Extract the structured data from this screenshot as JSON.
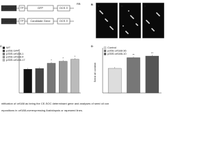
{
  "panels": {
    "a": {
      "rb": "RB",
      "rows": [
        [
          "CaMV35S",
          "TP",
          "GFP",
          "OCS 3'"
        ],
        [
          "CaMV35S",
          "TP",
          "Candidate Gene",
          "OCS 3'"
        ]
      ]
    },
    "b": {
      "label": "B",
      "images": [
        "a",
        "b",
        "c"
      ]
    }
  },
  "chart_data": [
    {
      "type": "bar",
      "label": "C",
      "ylim": [
        0,
        60
      ],
      "series": [
        {
          "name": "WT",
          "color": "#111111",
          "values": [
            36
          ]
        },
        {
          "name": "p35S:GFP",
          "color": "#444444",
          "values": [
            37
          ]
        },
        {
          "name": "p35S:orf188-1",
          "color": "#777777",
          "values": [
            45
          ],
          "annotation": "*"
        },
        {
          "name": "p35S:orf188-4",
          "color": "#999999",
          "values": [
            48
          ],
          "annotation": "*"
        },
        {
          "name": "p35S:orf188-17",
          "color": "#bbbbbb",
          "values": [
            51
          ],
          "annotation": "*"
        }
      ]
    },
    {
      "type": "bar",
      "label": "D",
      "y_label": "Seed oil content",
      "ylim": [
        0,
        50
      ],
      "series": [
        {
          "name": "Control",
          "color": "#dddddd",
          "values": [
            30
          ]
        },
        {
          "name": "p35S:orf188-36",
          "color": "#777777",
          "values": [
            43
          ],
          "annotation": "**"
        },
        {
          "name": "p35S:orf188-10",
          "color": "#555555",
          "values": [
            45
          ],
          "annotation": "**"
        }
      ]
    }
  ],
  "caption": [
    "ntification of orf188 as being the CE-SOC determinant gene and analyses of seed oil con",
    "mpositions in orf188-overexpressing Arabidopsis or rapeseed lines."
  ]
}
